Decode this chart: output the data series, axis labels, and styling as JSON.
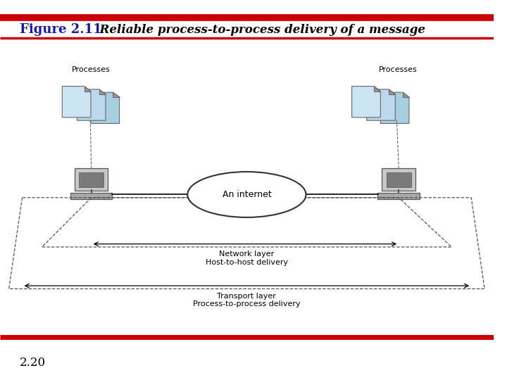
{
  "title_bold": "Figure 2.11",
  "title_italic": "  Reliable process-to-process delivery of a message",
  "footer_text": "2.20",
  "bg_color": "#ffffff",
  "red_color": "#cc0000",
  "blue_title_color": "#1a1aaa",
  "network_label": "Network layer\nHost-to-host delivery",
  "transport_label": "Transport layer\nProcess-to-process delivery",
  "processes_label": "Processes",
  "an_internet_label": "An internet"
}
